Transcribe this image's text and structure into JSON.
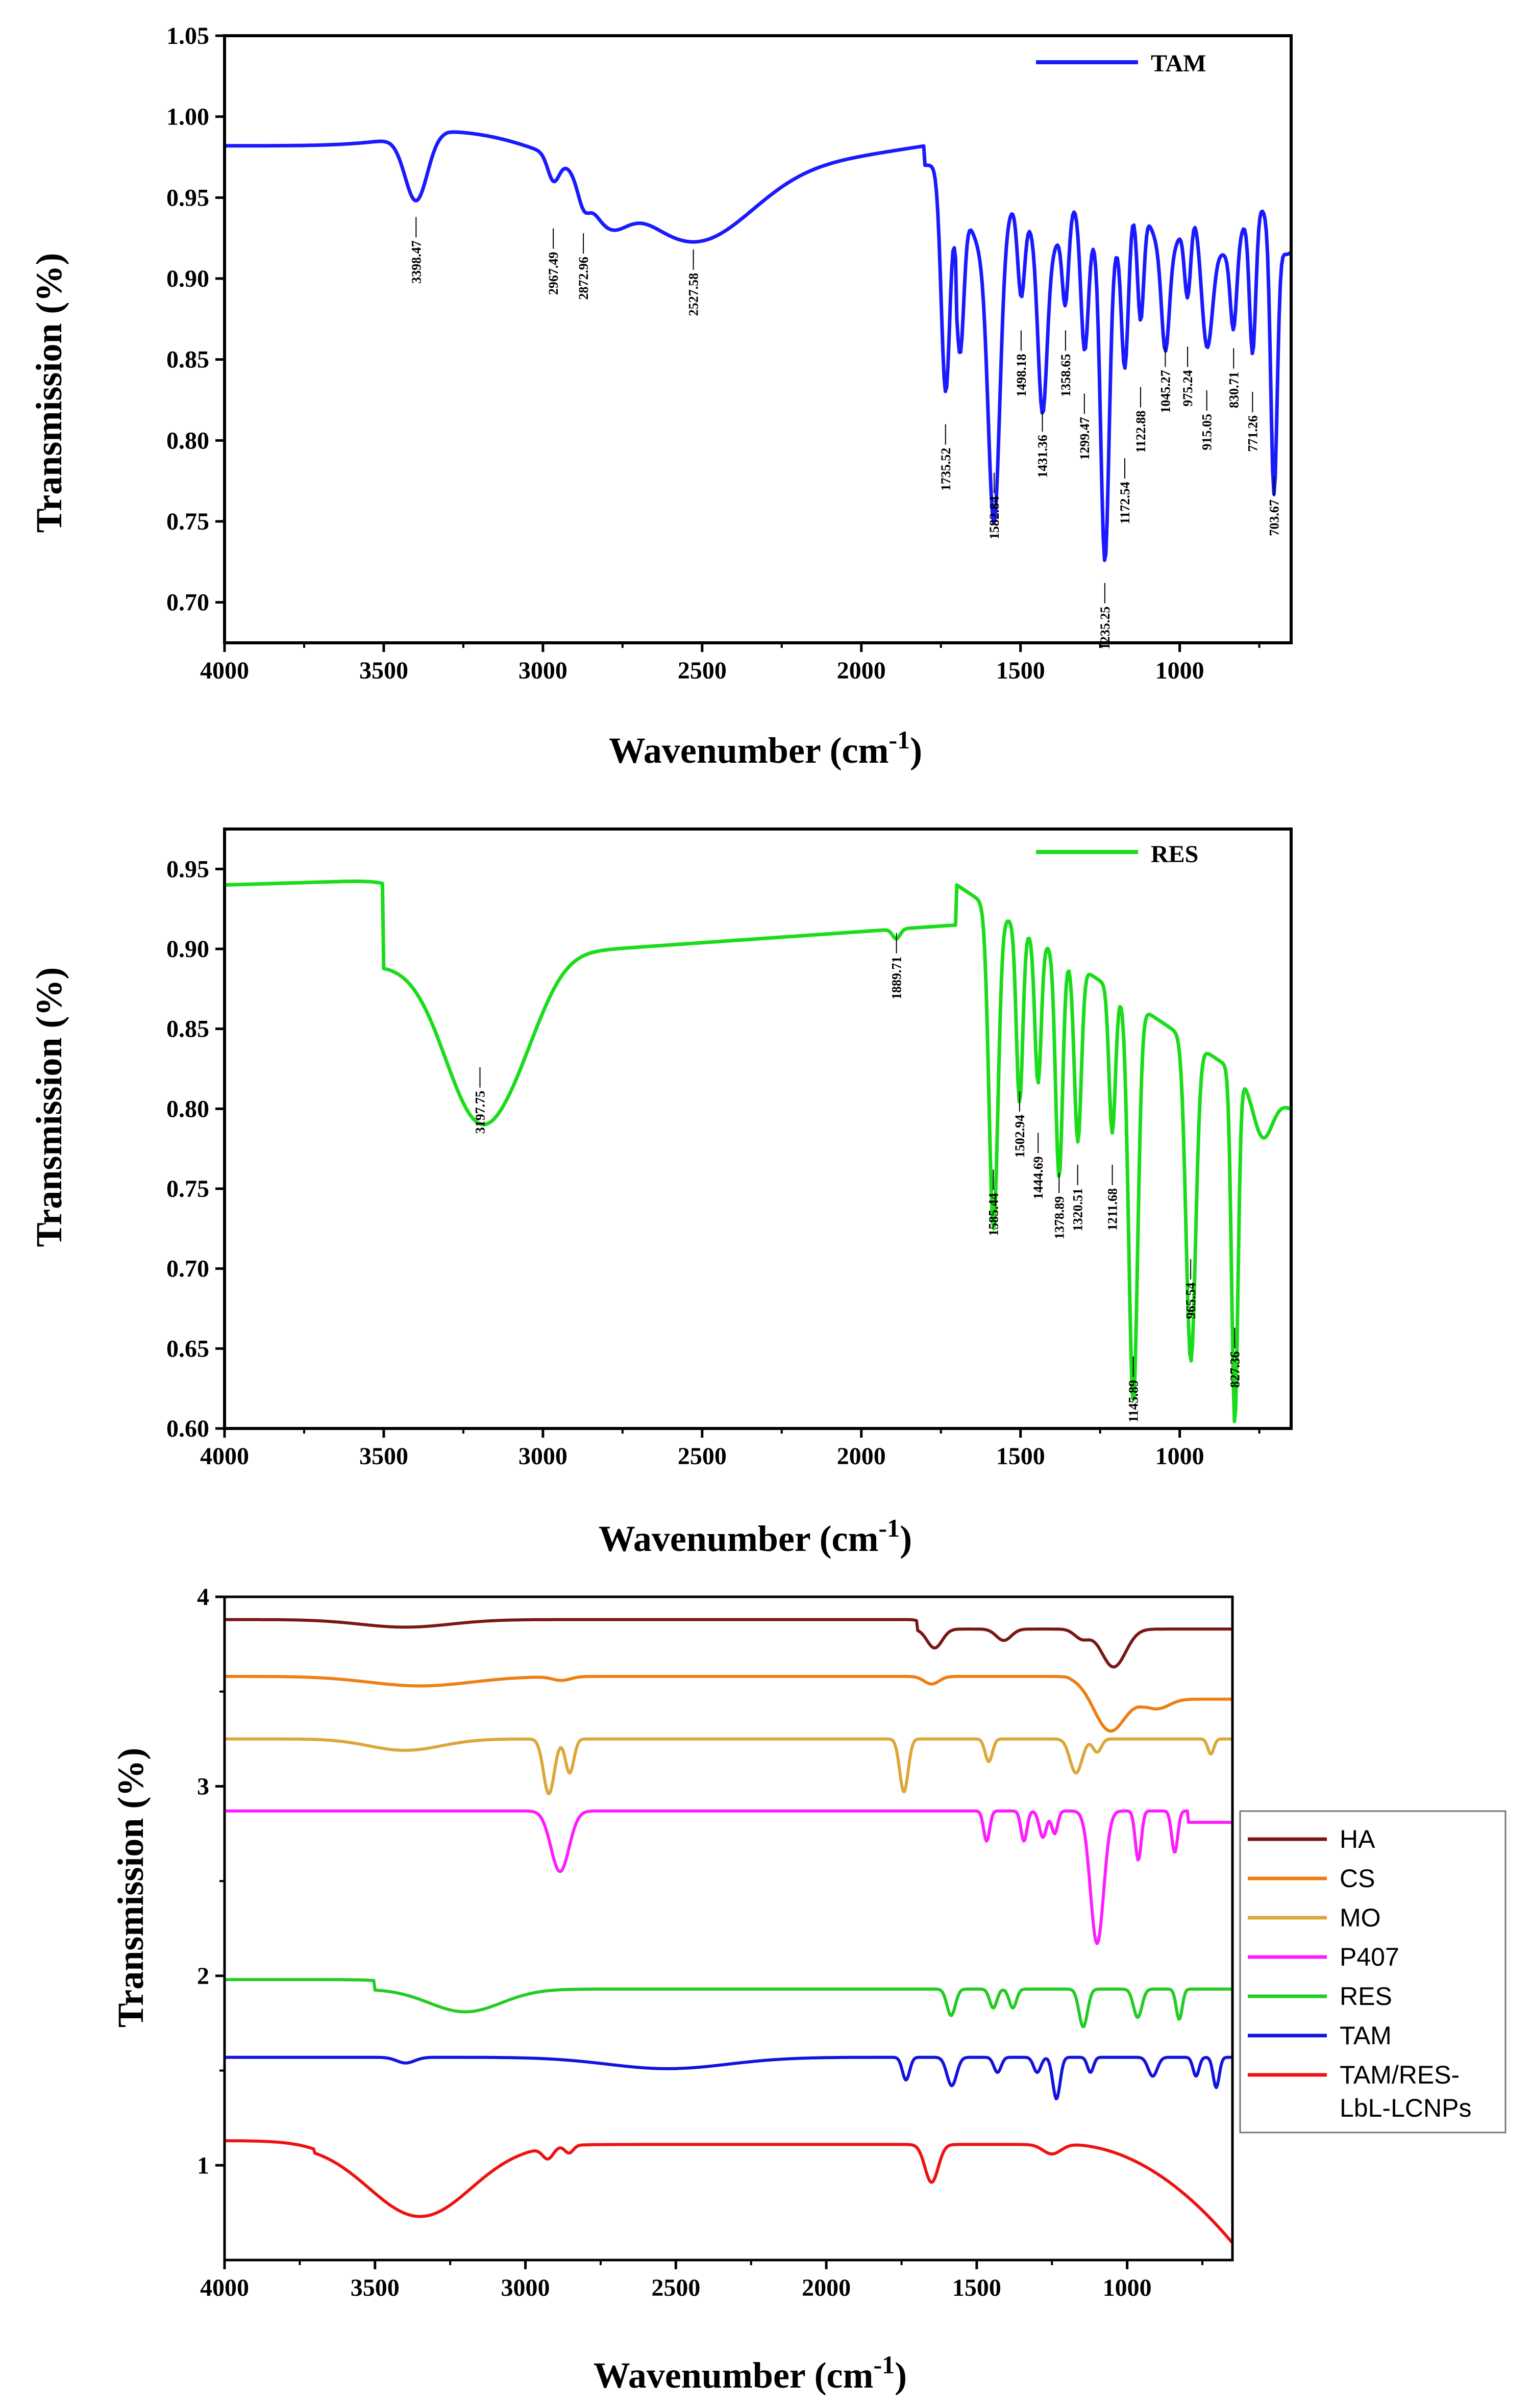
{
  "panels": [
    {
      "id": "tam",
      "legend_label": "TAM",
      "color": "#1a1aff",
      "ylabel": "Transmission (%)",
      "xlabel": "Wavenumber (cm",
      "xlabel_sup": "-1",
      "xlabel_close": ")",
      "x_ticks": [
        "4000",
        "3500",
        "3000",
        "2500",
        "2000",
        "1500",
        "1000"
      ],
      "y_ticks": [
        "1.05",
        "1.00",
        "0.95",
        "0.90",
        "0.85",
        "0.80",
        "0.75",
        "0.70"
      ],
      "annotations": [
        {
          "x": 3398.47,
          "y": 0.938,
          "label": "3398.47"
        },
        {
          "x": 2967.49,
          "y": 0.931,
          "label": "2967.49"
        },
        {
          "x": 2872.96,
          "y": 0.928,
          "label": "2872.96"
        },
        {
          "x": 2527.58,
          "y": 0.918,
          "label": "2527.58"
        },
        {
          "x": 1735.52,
          "y": 0.81,
          "label": "1735.52"
        },
        {
          "x": 1582.84,
          "y": 0.78,
          "label": "1582.84"
        },
        {
          "x": 1498.18,
          "y": 0.868,
          "label": "1498.18"
        },
        {
          "x": 1431.36,
          "y": 0.818,
          "label": "1431.36"
        },
        {
          "x": 1358.65,
          "y": 0.868,
          "label": "1358.65"
        },
        {
          "x": 1299.47,
          "y": 0.829,
          "label": "1299.47"
        },
        {
          "x": 1235.25,
          "y": 0.712,
          "label": "1235.25"
        },
        {
          "x": 1172.54,
          "y": 0.789,
          "label": "1172.54"
        },
        {
          "x": 1122.88,
          "y": 0.833,
          "label": "1122.88"
        },
        {
          "x": 1045.27,
          "y": 0.858,
          "label": "1045.27"
        },
        {
          "x": 975.24,
          "y": 0.858,
          "label": "975.24"
        },
        {
          "x": 915.05,
          "y": 0.831,
          "label": "915.05"
        },
        {
          "x": 830.71,
          "y": 0.857,
          "label": "830.71"
        },
        {
          "x": 771.26,
          "y": 0.83,
          "label": "771.26"
        },
        {
          "x": 703.67,
          "y": 0.778,
          "label": "703.67"
        }
      ]
    },
    {
      "id": "res",
      "legend_label": "RES",
      "color": "#1bdc1b",
      "ylabel": "Transmission (%)",
      "xlabel": "Wavenumber (cm",
      "xlabel_sup": "-1",
      "xlabel_close": ")",
      "x_ticks": [
        "4000",
        "3500",
        "3000",
        "2500",
        "2000",
        "1500",
        "1000"
      ],
      "y_ticks": [
        "0.95",
        "0.90",
        "0.85",
        "0.80",
        "0.75",
        "0.70",
        "0.65",
        "0.60"
      ],
      "annotations": [
        {
          "x": 3197.75,
          "y": 0.826,
          "label": "3197.75"
        },
        {
          "x": 1889.71,
          "y": 0.91,
          "label": "1889.71"
        },
        {
          "x": 1585.44,
          "y": 0.762,
          "label": "1585.44"
        },
        {
          "x": 1502.94,
          "y": 0.811,
          "label": "1502.94"
        },
        {
          "x": 1444.69,
          "y": 0.785,
          "label": "1444.69"
        },
        {
          "x": 1378.89,
          "y": 0.76,
          "label": "1378.89"
        },
        {
          "x": 1320.51,
          "y": 0.765,
          "label": "1320.51"
        },
        {
          "x": 1211.68,
          "y": 0.765,
          "label": "1211.68"
        },
        {
          "x": 1145.89,
          "y": 0.645,
          "label": "1145.89"
        },
        {
          "x": 965.54,
          "y": 0.706,
          "label": "965.54"
        },
        {
          "x": 827.36,
          "y": 0.663,
          "label": "827.36"
        }
      ]
    },
    {
      "id": "overlay",
      "ylabel": "Transmission (%)",
      "xlabel": "Wavenumber (cm",
      "xlabel_sup": "-1",
      "xlabel_close": ")",
      "x_ticks": [
        "4000",
        "3500",
        "3000",
        "2500",
        "2000",
        "1500",
        "1000"
      ],
      "y_ticks": [
        "4",
        "3",
        "2",
        "1"
      ],
      "legend": [
        {
          "label": "HA",
          "color": "#7a1616"
        },
        {
          "label": "CS",
          "color": "#ee7d12"
        },
        {
          "label": "MO",
          "color": "#dca638"
        },
        {
          "label": "P407",
          "color": "#ff1aff"
        },
        {
          "label": "RES",
          "color": "#22cc22"
        },
        {
          "label": "TAM",
          "color": "#1212e0"
        },
        {
          "label": "TAM/RES-",
          "label2": "LbL-LCNPs",
          "color": "#ee1111"
        }
      ]
    }
  ],
  "chart_data": [
    {
      "type": "line",
      "series": [
        {
          "name": "TAM",
          "color": "#1a1aff"
        }
      ],
      "xlabel": "Wavenumber (cm-1)",
      "ylabel": "Transmission (%)",
      "xlim": [
        4000,
        650
      ],
      "ylim": [
        0.675,
        1.05
      ],
      "x_reversed": true,
      "legend_position": "top-right",
      "grid": false,
      "peaks_x": [
        3398.47,
        2967.49,
        2872.96,
        2527.58,
        1735.52,
        1582.84,
        1498.18,
        1431.36,
        1358.65,
        1299.47,
        1235.25,
        1172.54,
        1122.88,
        1045.27,
        975.24,
        915.05,
        830.71,
        771.26,
        703.67
      ],
      "peaks_y": [
        0.938,
        0.931,
        0.928,
        0.918,
        0.81,
        0.78,
        0.868,
        0.818,
        0.868,
        0.829,
        0.712,
        0.789,
        0.833,
        0.858,
        0.858,
        0.831,
        0.857,
        0.83,
        0.778
      ]
    },
    {
      "type": "line",
      "series": [
        {
          "name": "RES",
          "color": "#1bdc1b"
        }
      ],
      "xlabel": "Wavenumber (cm-1)",
      "ylabel": "Transmission (%)",
      "xlim": [
        4000,
        650
      ],
      "ylim": [
        0.6,
        0.975
      ],
      "x_reversed": true,
      "legend_position": "top-right",
      "grid": false,
      "peaks_x": [
        3197.75,
        1889.71,
        1585.44,
        1502.94,
        1444.69,
        1378.89,
        1320.51,
        1211.68,
        1145.89,
        965.54,
        827.36
      ],
      "peaks_y": [
        0.826,
        0.91,
        0.762,
        0.811,
        0.785,
        0.76,
        0.765,
        0.765,
        0.645,
        0.706,
        0.663
      ]
    },
    {
      "type": "line",
      "series": [
        {
          "name": "HA",
          "color": "#7a1616",
          "offset": 3.88
        },
        {
          "name": "CS",
          "color": "#ee7d12",
          "offset": 3.58
        },
        {
          "name": "MO",
          "color": "#dca638",
          "offset": 3.25
        },
        {
          "name": "P407",
          "color": "#ff1aff",
          "offset": 2.87
        },
        {
          "name": "RES",
          "color": "#22cc22",
          "offset": 1.98
        },
        {
          "name": "TAM",
          "color": "#1212e0",
          "offset": 1.57
        },
        {
          "name": "TAM/RES-LbL-LCNPs",
          "color": "#ee1111",
          "offset": 1.13
        }
      ],
      "xlabel": "Wavenumber (cm-1)",
      "ylabel": "Transmission (%)",
      "xlim": [
        4000,
        650
      ],
      "ylim": [
        0.5,
        4.0
      ],
      "x_reversed": true,
      "legend_position": "right (outside)",
      "grid": false
    }
  ]
}
